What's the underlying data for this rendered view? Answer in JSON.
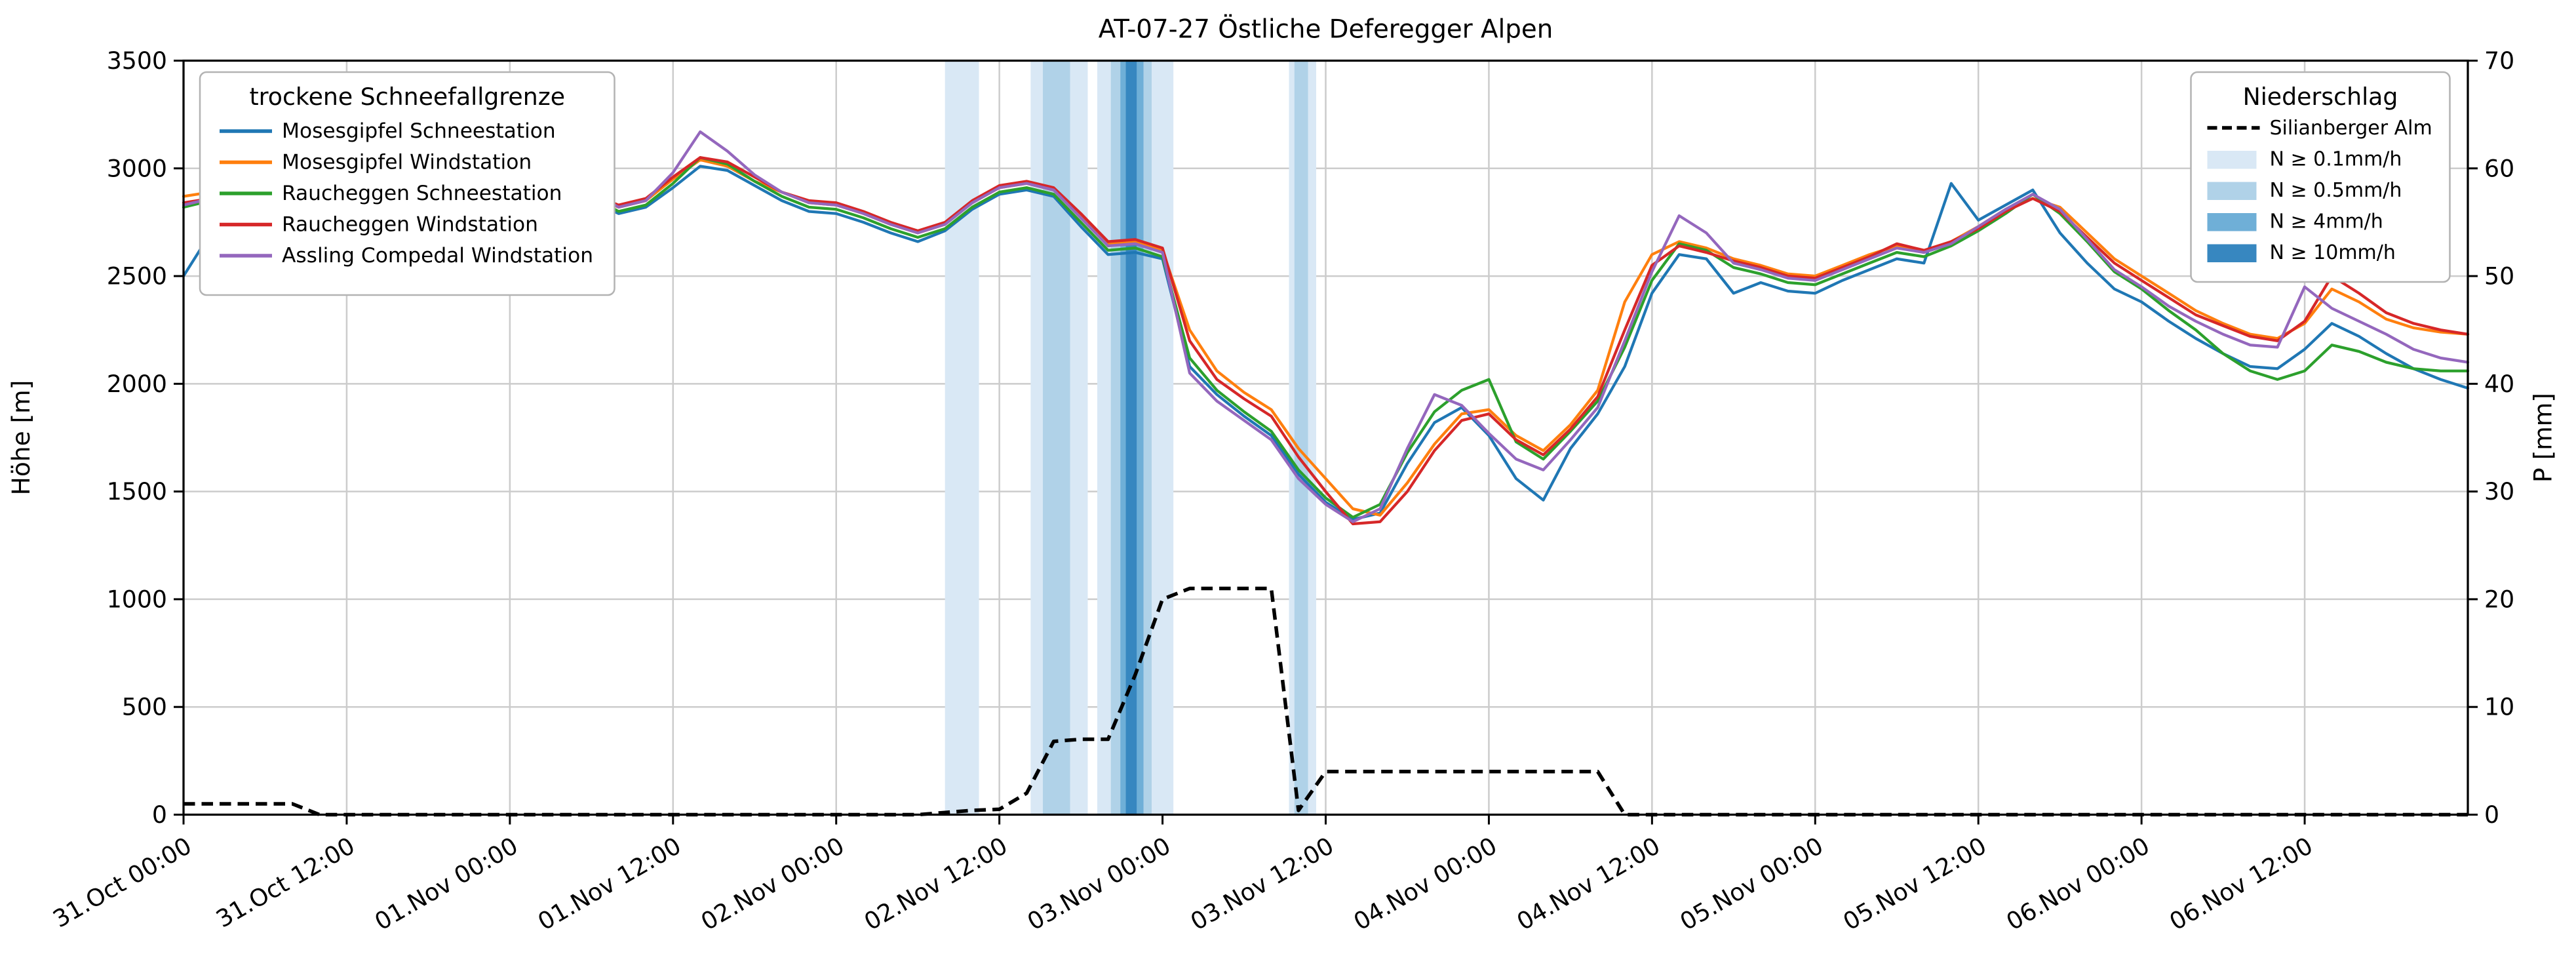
{
  "title": "AT-07-27 Östliche Deferegger Alpen",
  "colors": {
    "background": "#ffffff",
    "grid": "#cccccc",
    "axis": "#000000",
    "legend_border": "#b3b3b3"
  },
  "axes": {
    "y_left": {
      "label": "Höhe [m]",
      "min": 0,
      "max": 3500,
      "ticks": [
        0,
        500,
        1000,
        1500,
        2000,
        2500,
        3000,
        3500
      ]
    },
    "y_right": {
      "label": "P [mm]",
      "min": 0,
      "max": 70,
      "ticks": [
        0,
        10,
        20,
        30,
        40,
        50,
        60,
        70
      ]
    },
    "x": {
      "range_hours": [
        0,
        168
      ],
      "tick_hours": [
        0,
        12,
        24,
        36,
        48,
        60,
        72,
        84,
        96,
        108,
        120,
        132,
        144,
        156
      ],
      "tick_labels": [
        "31.Oct 00:00",
        "31.Oct 12:00",
        "01.Nov 00:00",
        "01.Nov 12:00",
        "02.Nov 00:00",
        "02.Nov 12:00",
        "03.Nov 00:00",
        "03.Nov 12:00",
        "04.Nov 00:00",
        "04.Nov 12:00",
        "05.Nov 00:00",
        "05.Nov 12:00",
        "06.Nov 00:00",
        "06.Nov 12:00"
      ]
    }
  },
  "legend_left": {
    "title": "trockene Schneefallgrenze",
    "entries": [
      {
        "label": "Mosesgipfel Schneestation",
        "color": "#1f77b4"
      },
      {
        "label": "Mosesgipfel Windstation",
        "color": "#ff7f0e"
      },
      {
        "label": "Raucheggen Schneestation",
        "color": "#2ca02c"
      },
      {
        "label": "Raucheggen Windstation",
        "color": "#d62728"
      },
      {
        "label": "Assling Compedal Windstation",
        "color": "#9467bd"
      }
    ]
  },
  "legend_right": {
    "title": "Niederschlag",
    "line_entry": {
      "label": "Silianberger Alm",
      "color": "#000000",
      "dashed": true
    },
    "band_entries": [
      {
        "label": "N ≥ 0.1mm/h",
        "color": "#d9e8f5"
      },
      {
        "label": "N ≥ 0.5mm/h",
        "color": "#b0d2e8"
      },
      {
        "label": "N ≥ 4mm/h",
        "color": "#6fafd7"
      },
      {
        "label": "N ≥ 10mm/h",
        "color": "#3787c0"
      }
    ]
  },
  "chart_data": {
    "type": "line",
    "title": "AT-07-27 Östliche Deferegger Alpen",
    "xlabel": "",
    "ylabel_left": "Höhe [m]",
    "ylabel_right": "P [mm]",
    "ylim_left": [
      0,
      3500
    ],
    "ylim_right": [
      0,
      70
    ],
    "grid": true,
    "x_unit": "hours since 31.Oct 00:00",
    "x_hours": [
      0,
      2,
      4,
      6,
      8,
      10,
      12,
      14,
      16,
      18,
      20,
      22,
      24,
      26,
      28,
      30,
      32,
      34,
      36,
      38,
      40,
      42,
      44,
      46,
      48,
      50,
      52,
      54,
      56,
      58,
      60,
      62,
      64,
      66,
      68,
      70,
      72,
      74,
      76,
      78,
      80,
      82,
      84,
      86,
      88,
      90,
      92,
      94,
      96,
      98,
      100,
      102,
      104,
      106,
      108,
      110,
      112,
      114,
      116,
      118,
      120,
      122,
      124,
      126,
      128,
      130,
      132,
      134,
      136,
      138,
      140,
      142,
      144,
      146,
      148,
      150,
      152,
      154,
      156,
      158,
      160,
      162,
      164,
      166,
      168
    ],
    "series": [
      {
        "name": "Mosesgipfel Schneestation",
        "color": "#1f77b4",
        "unit": "m",
        "values": [
          2500,
          2700,
          2810,
          2800,
          2760,
          2730,
          2740,
          2780,
          2840,
          2920,
          3020,
          3080,
          3050,
          2990,
          2910,
          2850,
          2790,
          2820,
          2910,
          3010,
          2990,
          2920,
          2850,
          2800,
          2790,
          2750,
          2700,
          2660,
          2710,
          2810,
          2880,
          2900,
          2870,
          2730,
          2600,
          2610,
          2580,
          2080,
          1950,
          1850,
          1760,
          1580,
          1450,
          1370,
          1400,
          1630,
          1820,
          1890,
          1760,
          1560,
          1460,
          1700,
          1860,
          2080,
          2420,
          2600,
          2580,
          2420,
          2470,
          2430,
          2420,
          2480,
          2530,
          2580,
          2560,
          2930,
          2760,
          2830,
          2900,
          2700,
          2560,
          2440,
          2380,
          2290,
          2210,
          2140,
          2080,
          2070,
          2160,
          2280,
          2220,
          2140,
          2070,
          2020,
          1980
        ]
      },
      {
        "name": "Mosesgipfel Windstation",
        "color": "#ff7f0e",
        "unit": "m",
        "values": [
          2870,
          2890,
          2880,
          2850,
          2810,
          2780,
          2790,
          2820,
          2890,
          2970,
          3040,
          3100,
          3070,
          3010,
          2930,
          2870,
          2820,
          2850,
          2950,
          3040,
          3010,
          2940,
          2890,
          2840,
          2830,
          2790,
          2740,
          2700,
          2740,
          2840,
          2910,
          2930,
          2900,
          2780,
          2650,
          2660,
          2620,
          2250,
          2060,
          1960,
          1880,
          1700,
          1560,
          1420,
          1390,
          1540,
          1720,
          1860,
          1880,
          1760,
          1690,
          1810,
          1970,
          2380,
          2600,
          2660,
          2630,
          2580,
          2550,
          2510,
          2500,
          2550,
          2600,
          2640,
          2610,
          2660,
          2730,
          2810,
          2860,
          2820,
          2700,
          2580,
          2500,
          2420,
          2340,
          2280,
          2230,
          2210,
          2280,
          2440,
          2380,
          2300,
          2260,
          2240,
          2230
        ]
      },
      {
        "name": "Raucheggen Schneestation",
        "color": "#2ca02c",
        "unit": "m",
        "values": [
          2820,
          2850,
          2860,
          2840,
          2800,
          2770,
          2780,
          2810,
          2880,
          2960,
          3070,
          3140,
          3080,
          3010,
          2930,
          2870,
          2800,
          2830,
          2930,
          3050,
          3020,
          2940,
          2870,
          2820,
          2810,
          2770,
          2720,
          2680,
          2720,
          2820,
          2890,
          2910,
          2880,
          2750,
          2620,
          2630,
          2590,
          2120,
          1970,
          1870,
          1780,
          1600,
          1470,
          1380,
          1440,
          1680,
          1870,
          1970,
          2020,
          1730,
          1650,
          1780,
          1920,
          2170,
          2480,
          2650,
          2620,
          2540,
          2510,
          2470,
          2460,
          2510,
          2560,
          2610,
          2590,
          2640,
          2710,
          2790,
          2880,
          2790,
          2660,
          2520,
          2440,
          2340,
          2250,
          2140,
          2060,
          2020,
          2060,
          2180,
          2150,
          2100,
          2070,
          2060,
          2060
        ]
      },
      {
        "name": "Raucheggen Windstation",
        "color": "#d62728",
        "unit": "m",
        "values": [
          2840,
          2860,
          2870,
          2850,
          2800,
          2780,
          2790,
          2820,
          2890,
          2980,
          3050,
          3110,
          3080,
          3020,
          2940,
          2880,
          2830,
          2860,
          2960,
          3050,
          3030,
          2960,
          2890,
          2850,
          2840,
          2800,
          2750,
          2710,
          2750,
          2850,
          2920,
          2940,
          2910,
          2790,
          2660,
          2670,
          2630,
          2200,
          2020,
          1930,
          1850,
          1660,
          1500,
          1350,
          1360,
          1500,
          1690,
          1830,
          1860,
          1740,
          1670,
          1790,
          1940,
          2250,
          2550,
          2640,
          2610,
          2570,
          2540,
          2500,
          2490,
          2540,
          2590,
          2650,
          2620,
          2660,
          2720,
          2800,
          2860,
          2800,
          2680,
          2560,
          2480,
          2400,
          2320,
          2270,
          2220,
          2200,
          2290,
          2500,
          2420,
          2330,
          2280,
          2250,
          2230
        ]
      },
      {
        "name": "Assling Compedal Windstation",
        "color": "#9467bd",
        "unit": "m",
        "values": [
          2830,
          2860,
          2870,
          2840,
          2800,
          2770,
          2780,
          2820,
          2900,
          3000,
          3180,
          3270,
          3160,
          3050,
          2950,
          2890,
          2820,
          2850,
          2980,
          3170,
          3080,
          2970,
          2890,
          2840,
          2830,
          2790,
          2740,
          2700,
          2740,
          2840,
          2910,
          2930,
          2900,
          2770,
          2640,
          2650,
          2610,
          2050,
          1920,
          1830,
          1740,
          1560,
          1440,
          1360,
          1420,
          1700,
          1950,
          1900,
          1770,
          1650,
          1600,
          1740,
          1890,
          2200,
          2520,
          2780,
          2700,
          2560,
          2530,
          2490,
          2480,
          2530,
          2580,
          2630,
          2610,
          2650,
          2730,
          2810,
          2880,
          2810,
          2670,
          2530,
          2450,
          2360,
          2290,
          2230,
          2180,
          2170,
          2450,
          2350,
          2290,
          2230,
          2160,
          2120,
          2100
        ]
      }
    ],
    "precipitation_line": {
      "name": "Silianberger Alm",
      "axis": "right",
      "unit": "mm",
      "style": "dashed",
      "color": "#000000",
      "values": [
        1.0,
        1.0,
        1.0,
        1.0,
        1.0,
        0,
        0,
        0,
        0,
        0,
        0,
        0,
        0,
        0,
        0,
        0,
        0,
        0,
        0,
        0,
        0,
        0,
        0,
        0,
        0,
        0,
        0,
        0,
        0.2,
        0.4,
        0.5,
        2.0,
        6.8,
        7.0,
        7.0,
        13,
        20,
        21,
        21,
        21,
        21,
        0.4,
        4,
        4,
        4,
        4,
        4,
        4,
        4,
        4,
        4,
        4,
        4,
        0,
        0,
        0,
        0,
        0,
        0,
        0,
        0,
        0,
        0,
        0,
        0,
        0,
        0,
        0,
        0,
        0,
        0,
        0,
        0,
        0,
        0,
        0,
        0,
        0,
        0,
        0,
        0,
        0,
        0,
        0,
        0
      ]
    },
    "precipitation_bands": [
      {
        "start_hour": 56.0,
        "end_hour": 58.5,
        "level": "N ≥ 0.1mm/h",
        "color": "#d9e8f5"
      },
      {
        "start_hour": 62.3,
        "end_hour": 66.5,
        "level": "N ≥ 0.1mm/h",
        "color": "#d9e8f5"
      },
      {
        "start_hour": 63.2,
        "end_hour": 65.2,
        "level": "N ≥ 0.5mm/h",
        "color": "#b0d2e8"
      },
      {
        "start_hour": 67.2,
        "end_hour": 72.8,
        "level": "N ≥ 0.1mm/h",
        "color": "#d9e8f5"
      },
      {
        "start_hour": 68.2,
        "end_hour": 71.2,
        "level": "N ≥ 0.5mm/h",
        "color": "#b0d2e8"
      },
      {
        "start_hour": 68.9,
        "end_hour": 70.6,
        "level": "N ≥ 4mm/h",
        "color": "#6fafd7"
      },
      {
        "start_hour": 69.3,
        "end_hour": 70.1,
        "level": "N ≥ 10mm/h",
        "color": "#3787c0"
      },
      {
        "start_hour": 81.3,
        "end_hour": 83.3,
        "level": "N ≥ 0.1mm/h",
        "color": "#d9e8f5"
      },
      {
        "start_hour": 81.7,
        "end_hour": 82.7,
        "level": "N ≥ 0.5mm/h",
        "color": "#b0d2e8"
      }
    ]
  }
}
